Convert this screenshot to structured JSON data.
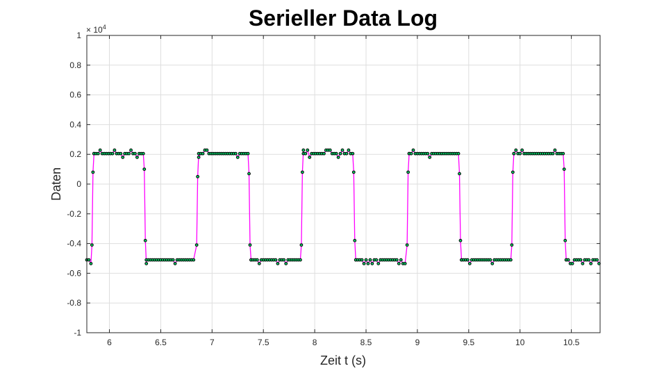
{
  "chart_data": {
    "type": "line",
    "title": "Serieller Data Log",
    "xlabel": "Zeit t (s)",
    "ylabel": "Daten",
    "y_exponent_base": "× 10",
    "y_exponent_power": "4",
    "xlim": [
      5.78,
      10.78
    ],
    "ylim": [
      -1,
      1
    ],
    "xticks": [
      6,
      6.5,
      7,
      7.5,
      8,
      8.5,
      9,
      9.5,
      10,
      10.5
    ],
    "xtick_labels": [
      "6",
      "6.5",
      "7",
      "7.5",
      "8",
      "8.5",
      "9",
      "9.5",
      "10",
      "10.5"
    ],
    "yticks": [
      -1,
      -0.8,
      -0.6,
      -0.4,
      -0.2,
      0,
      0.2,
      0.4,
      0.6,
      0.8,
      1
    ],
    "ytick_labels": [
      "-1",
      "-0.8",
      "-0.6",
      "-0.4",
      "-0.2",
      "0",
      "0.2",
      "0.4",
      "0.6",
      "0.8",
      "1"
    ],
    "grid": true,
    "line_color": "#ff00ff",
    "marker_edge_color": "#000000",
    "marker_face_color": "#00cc66",
    "signal": {
      "high_level": 0.205,
      "low_level": -0.51,
      "upper_outliers": 0.228,
      "lower_outliers": -0.535,
      "sample_interval": 0.02,
      "segments": [
        {
          "level": "low",
          "start": 5.78,
          "end": 5.83
        },
        {
          "level": "high",
          "start": 5.85,
          "end": 6.33
        },
        {
          "level": "low",
          "start": 6.36,
          "end": 6.83
        },
        {
          "level": "high",
          "start": 6.87,
          "end": 7.35
        },
        {
          "level": "low",
          "start": 7.38,
          "end": 7.86
        },
        {
          "level": "high",
          "start": 7.89,
          "end": 8.37
        },
        {
          "level": "low",
          "start": 8.4,
          "end": 8.89
        },
        {
          "level": "high",
          "start": 8.92,
          "end": 9.4
        },
        {
          "level": "low",
          "start": 9.43,
          "end": 9.91
        },
        {
          "level": "high",
          "start": 9.94,
          "end": 10.42
        },
        {
          "level": "low",
          "start": 10.45,
          "end": 10.78
        }
      ],
      "transitions": [
        {
          "x": [
            5.83,
            5.84,
            5.85
          ],
          "y": [
            -0.41,
            0.08,
            0.205
          ]
        },
        {
          "x": [
            6.34,
            6.35,
            6.36
          ],
          "y": [
            0.1,
            -0.38,
            -0.535
          ]
        },
        {
          "x": [
            6.85,
            6.86,
            6.87
          ],
          "y": [
            -0.41,
            0.05,
            0.205
          ]
        },
        {
          "x": [
            7.36,
            7.37,
            7.38
          ],
          "y": [
            0.07,
            -0.41,
            -0.51
          ]
        },
        {
          "x": [
            7.87,
            7.88,
            7.89
          ],
          "y": [
            -0.41,
            0.08,
            0.228
          ]
        },
        {
          "x": [
            8.38,
            8.39,
            8.4
          ],
          "y": [
            0.08,
            -0.38,
            -0.51
          ]
        },
        {
          "x": [
            8.9,
            8.91,
            8.92
          ],
          "y": [
            -0.41,
            0.08,
            0.205
          ]
        },
        {
          "x": [
            9.41,
            9.42,
            9.43
          ],
          "y": [
            0.07,
            -0.38,
            -0.51
          ]
        },
        {
          "x": [
            9.92,
            9.93,
            9.94
          ],
          "y": [
            -0.41,
            0.08,
            0.205
          ]
        },
        {
          "x": [
            10.43,
            10.44,
            10.45
          ],
          "y": [
            0.1,
            -0.38,
            -0.51
          ]
        }
      ]
    }
  }
}
